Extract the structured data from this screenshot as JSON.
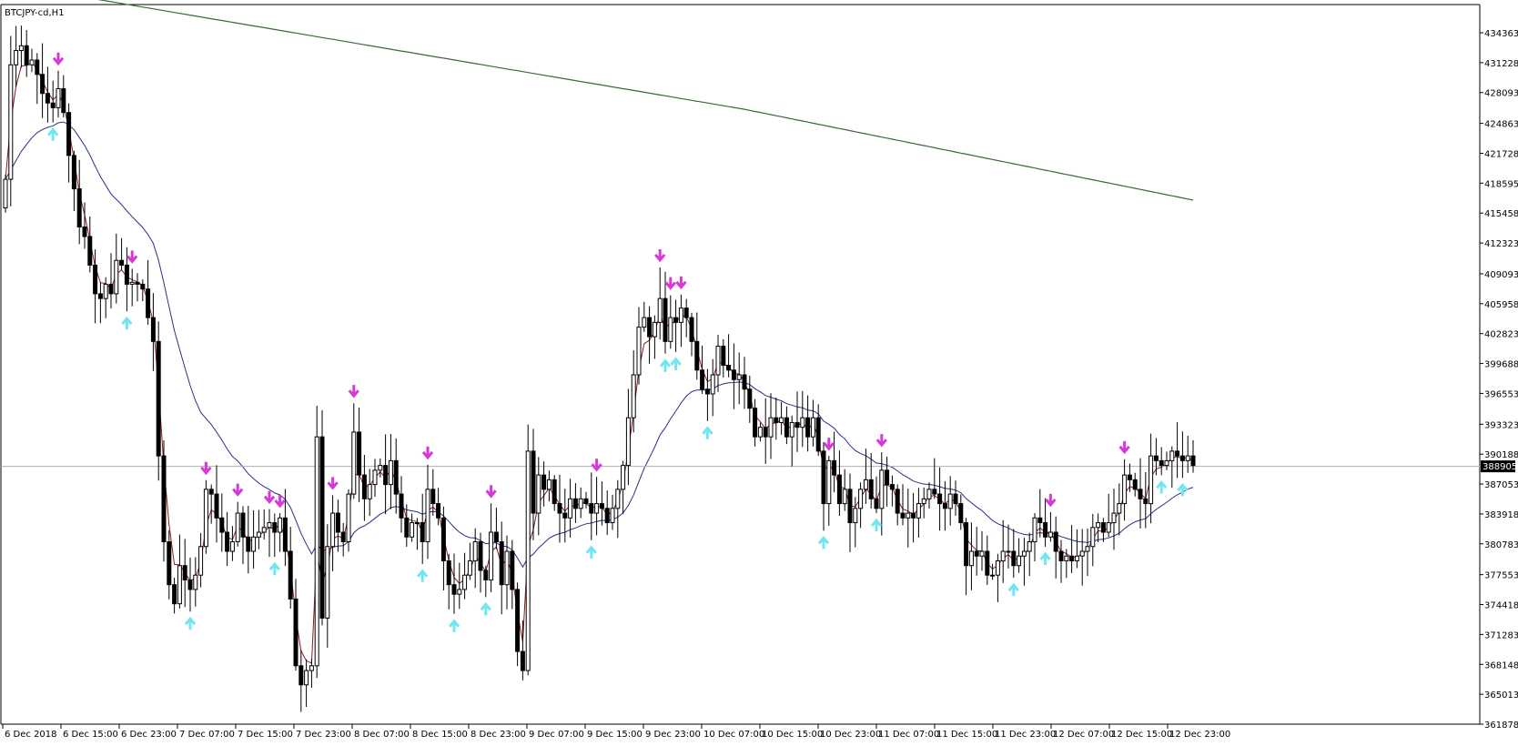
{
  "window": {
    "title": "BTCJPY-cd,H1",
    "current_price_label": "388905"
  },
  "chart_data": {
    "type": "candlestick",
    "title": "BTCJPY-cd,H1",
    "symbol": "BTCJPY-cd",
    "timeframe": "H1",
    "ylim": [
      361878,
      436500
    ],
    "grid": false,
    "y_ticks": [
      434363,
      431228,
      428093,
      424863,
      421728,
      418595,
      415458,
      412323,
      409093,
      405958,
      402823,
      399688,
      396553,
      393323,
      390188,
      387053,
      383918,
      380783,
      377553,
      374418,
      371283,
      368148,
      365013,
      361878
    ],
    "x_tick_labels": [
      "6 Dec 2018",
      "6 Dec 15:00",
      "6 Dec 23:00",
      "7 Dec 07:00",
      "7 Dec 15:00",
      "7 Dec 23:00",
      "8 Dec 07:00",
      "8 Dec 15:00",
      "8 Dec 23:00",
      "9 Dec 07:00",
      "9 Dec 15:00",
      "9 Dec 23:00",
      "10 Dec 07:00",
      "10 Dec 15:00",
      "10 Dec 23:00",
      "11 Dec 07:00",
      "11 Dec 15:00",
      "11 Dec 23:00",
      "12 Dec 07:00",
      "12 Dec 15:00",
      "12 Dec 23:00"
    ],
    "current_price": 388905,
    "close": [
      419000,
      431000,
      432500,
      433000,
      431000,
      431500,
      430000,
      428000,
      427000,
      426500,
      428500,
      426000,
      421500,
      418000,
      414000,
      413000,
      410000,
      407000,
      406500,
      408000,
      407000,
      410500,
      410000,
      408000,
      408200,
      408000,
      407500,
      404500,
      402000,
      390000,
      381000,
      376500,
      374500,
      378500,
      377000,
      376000,
      377500,
      380500,
      386500,
      386000,
      383500,
      382000,
      380000,
      381000,
      384000,
      381500,
      380000,
      381500,
      382000,
      382500,
      383000,
      382000,
      383500,
      380000,
      375000,
      368000,
      366000,
      367500,
      368000,
      392000,
      373000,
      380500,
      384000,
      382000,
      381000,
      386000,
      392500,
      388000,
      385500,
      387000,
      388500,
      389000,
      387000,
      389500,
      386000,
      383500,
      381500,
      383000,
      383000,
      381000,
      386500,
      385000,
      383500,
      379000,
      376500,
      375500,
      376000,
      377500,
      379000,
      381000,
      378000,
      377000,
      382000,
      381000,
      376500,
      380000,
      376000,
      369500,
      367500,
      390500,
      384000,
      388000,
      386500,
      387500,
      385000,
      384000,
      383500,
      385500,
      384500,
      385500,
      385000,
      384000,
      385000,
      384500,
      383000,
      384500,
      386500,
      389000,
      394000,
      398500,
      403500,
      404500,
      402500,
      404000,
      406500,
      402000,
      404500,
      404000,
      405500,
      404500,
      402000,
      399000,
      397000,
      396500,
      398500,
      401500,
      399500,
      399000,
      398000,
      398500,
      397000,
      395000,
      392000,
      393000,
      392000,
      394000,
      393500,
      394000,
      392000,
      393500,
      393000,
      394000,
      392000,
      394000,
      390500,
      385000,
      389500,
      388000,
      385000,
      386500,
      383000,
      384500,
      386500,
      387500,
      385500,
      384500,
      388500,
      387000,
      386500,
      384000,
      383500,
      384000,
      383500,
      385000,
      385500,
      386500,
      386000,
      385000,
      384500,
      386000,
      385000,
      383000,
      378500,
      380000,
      379500,
      380000,
      377500,
      377500,
      379000,
      380000,
      380000,
      378500,
      379500,
      380000,
      381000,
      383500,
      383000,
      381500,
      382000,
      380000,
      379000,
      379500,
      379000,
      379500,
      380000,
      380500,
      382500,
      383000,
      382000,
      383000,
      384000,
      385000,
      388000,
      387500,
      386500,
      385500,
      385000,
      390000,
      389500,
      389000,
      389500,
      390500,
      390000,
      389500,
      390000,
      389000
    ]
  }
}
